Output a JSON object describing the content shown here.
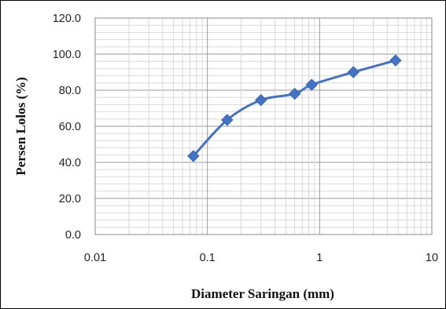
{
  "chart_data": {
    "type": "scatter",
    "title": "",
    "xlabel": "Diameter Saringan (mm)",
    "ylabel": "Persen Lolos (%)",
    "x_scale": "log",
    "xlim": [
      0.01,
      10
    ],
    "ylim": [
      0,
      120
    ],
    "x_ticks": [
      "0.01",
      "0.1",
      "1",
      "10"
    ],
    "y_ticks": [
      "0.0",
      "20.0",
      "40.0",
      "60.0",
      "80.0",
      "100.0",
      "120.0"
    ],
    "grid": true,
    "legend": "none",
    "series_color": "#4472C4",
    "marker": "diamond",
    "line": "smoothed",
    "series": [
      {
        "x": [
          0.075,
          0.15,
          0.3,
          0.6,
          0.85,
          2.0,
          4.75
        ],
        "y": [
          43.5,
          63.5,
          74.5,
          78.0,
          83.0,
          90.0,
          96.5
        ]
      }
    ]
  }
}
